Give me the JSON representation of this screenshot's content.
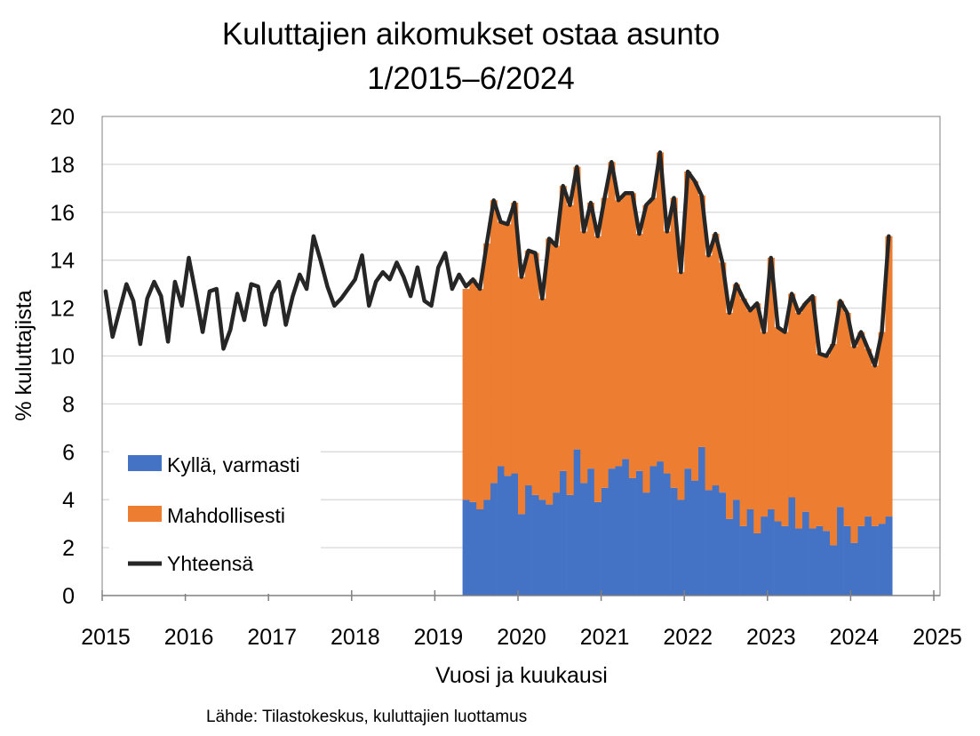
{
  "chart_data": {
    "type": "bar",
    "title": "Kuluttajien aikomukset ostaa asunto",
    "subtitle": "1/2015–6/2024",
    "xlabel": "Vuosi ja kuukausi",
    "ylabel": "% kuluttajista",
    "source": "Lähde: Tilastokeskus, kuluttajien luottamus",
    "ylim": [
      0,
      20
    ],
    "yticks": [
      0,
      2,
      4,
      6,
      8,
      10,
      12,
      14,
      16,
      18,
      20
    ],
    "xlim": [
      2015,
      2025
    ],
    "xticks": [
      "2015",
      "2016",
      "2017",
      "2018",
      "2019",
      "2020",
      "2021",
      "2022",
      "2023",
      "2024",
      "2025"
    ],
    "grid": true,
    "legend_position": "bottom-left",
    "colors": {
      "varmasti": "#4472C4",
      "mahdollisesti": "#ED7D31",
      "yhteensa": "#262626"
    },
    "series": [
      {
        "name": "Yhteensä",
        "kind": "line",
        "start": "2015-01",
        "values": [
          12.7,
          10.8,
          11.9,
          13.0,
          12.3,
          10.5,
          12.4,
          13.1,
          12.5,
          10.6,
          13.1,
          12.1,
          14.1,
          12.6,
          11.0,
          12.7,
          12.8,
          10.3,
          11.1,
          12.6,
          11.5,
          13.0,
          12.9,
          11.3,
          12.6,
          13.1,
          11.3,
          12.5,
          13.4,
          12.8,
          15.0,
          14.0,
          12.9,
          12.1,
          12.4,
          12.8,
          13.2,
          14.2,
          12.1,
          13.1,
          13.5,
          13.2,
          13.9,
          13.3,
          12.5,
          13.7,
          12.3,
          12.1,
          13.7,
          14.3,
          12.8,
          13.4,
          12.9,
          13.2,
          12.8,
          14.7,
          16.5,
          15.6,
          15.5,
          16.4,
          13.3,
          14.4,
          14.3,
          12.4,
          14.9,
          14.6,
          17.1,
          16.3,
          17.9,
          15.2,
          16.4,
          15.0,
          16.6,
          18.1,
          16.5,
          16.8,
          16.8,
          15.1,
          16.3,
          16.6,
          18.5,
          15.2,
          16.6,
          13.5,
          17.7,
          17.3,
          16.7,
          14.2,
          15.1,
          13.9,
          11.8,
          13.0,
          12.4,
          11.9,
          12.2,
          11.0,
          14.1,
          11.2,
          11.0,
          12.6,
          11.8,
          12.2,
          12.5,
          10.1,
          10.0,
          10.5,
          12.3,
          11.8,
          10.4,
          11.0,
          10.3,
          9.6,
          11.0,
          15.0
        ]
      },
      {
        "name": "Kyllä, varmasti",
        "kind": "bar",
        "start": "2019-05",
        "values": [
          4.0,
          3.9,
          3.6,
          4.0,
          4.7,
          5.4,
          5.0,
          5.1,
          3.4,
          4.6,
          4.2,
          4.0,
          3.8,
          4.3,
          5.2,
          4.2,
          6.1,
          4.7,
          5.3,
          3.9,
          4.5,
          5.3,
          5.4,
          5.7,
          4.9,
          5.2,
          4.3,
          5.4,
          5.6,
          5.1,
          4.5,
          4.0,
          5.3,
          4.8,
          6.2,
          4.4,
          4.6,
          4.3,
          3.2,
          4.0,
          2.9,
          3.6,
          2.6,
          3.3,
          3.6,
          3.1,
          2.9,
          4.1,
          2.8,
          3.5,
          2.8,
          2.9,
          2.7,
          2.1,
          3.7,
          2.9,
          2.2,
          2.9,
          3.3,
          2.9,
          3.0,
          3.3
        ]
      },
      {
        "name": "Mahdollisesti",
        "kind": "bar",
        "start": "2019-05",
        "values": [
          8.8,
          9.3,
          9.2,
          10.7,
          11.8,
          10.2,
          10.5,
          11.3,
          9.9,
          9.8,
          10.1,
          8.4,
          11.1,
          10.3,
          11.9,
          12.1,
          11.8,
          10.5,
          11.1,
          11.1,
          12.1,
          12.8,
          11.1,
          11.1,
          11.9,
          9.9,
          12.0,
          11.2,
          12.9,
          10.1,
          12.1,
          9.5,
          12.4,
          12.5,
          10.5,
          9.8,
          10.5,
          9.6,
          8.6,
          9.0,
          9.5,
          8.3,
          9.6,
          7.7,
          10.5,
          8.1,
          8.1,
          8.5,
          9.0,
          8.7,
          9.7,
          7.2,
          7.3,
          8.4,
          8.6,
          8.9,
          8.2,
          8.1,
          7.0,
          6.7,
          8.0,
          11.7
        ]
      }
    ]
  }
}
